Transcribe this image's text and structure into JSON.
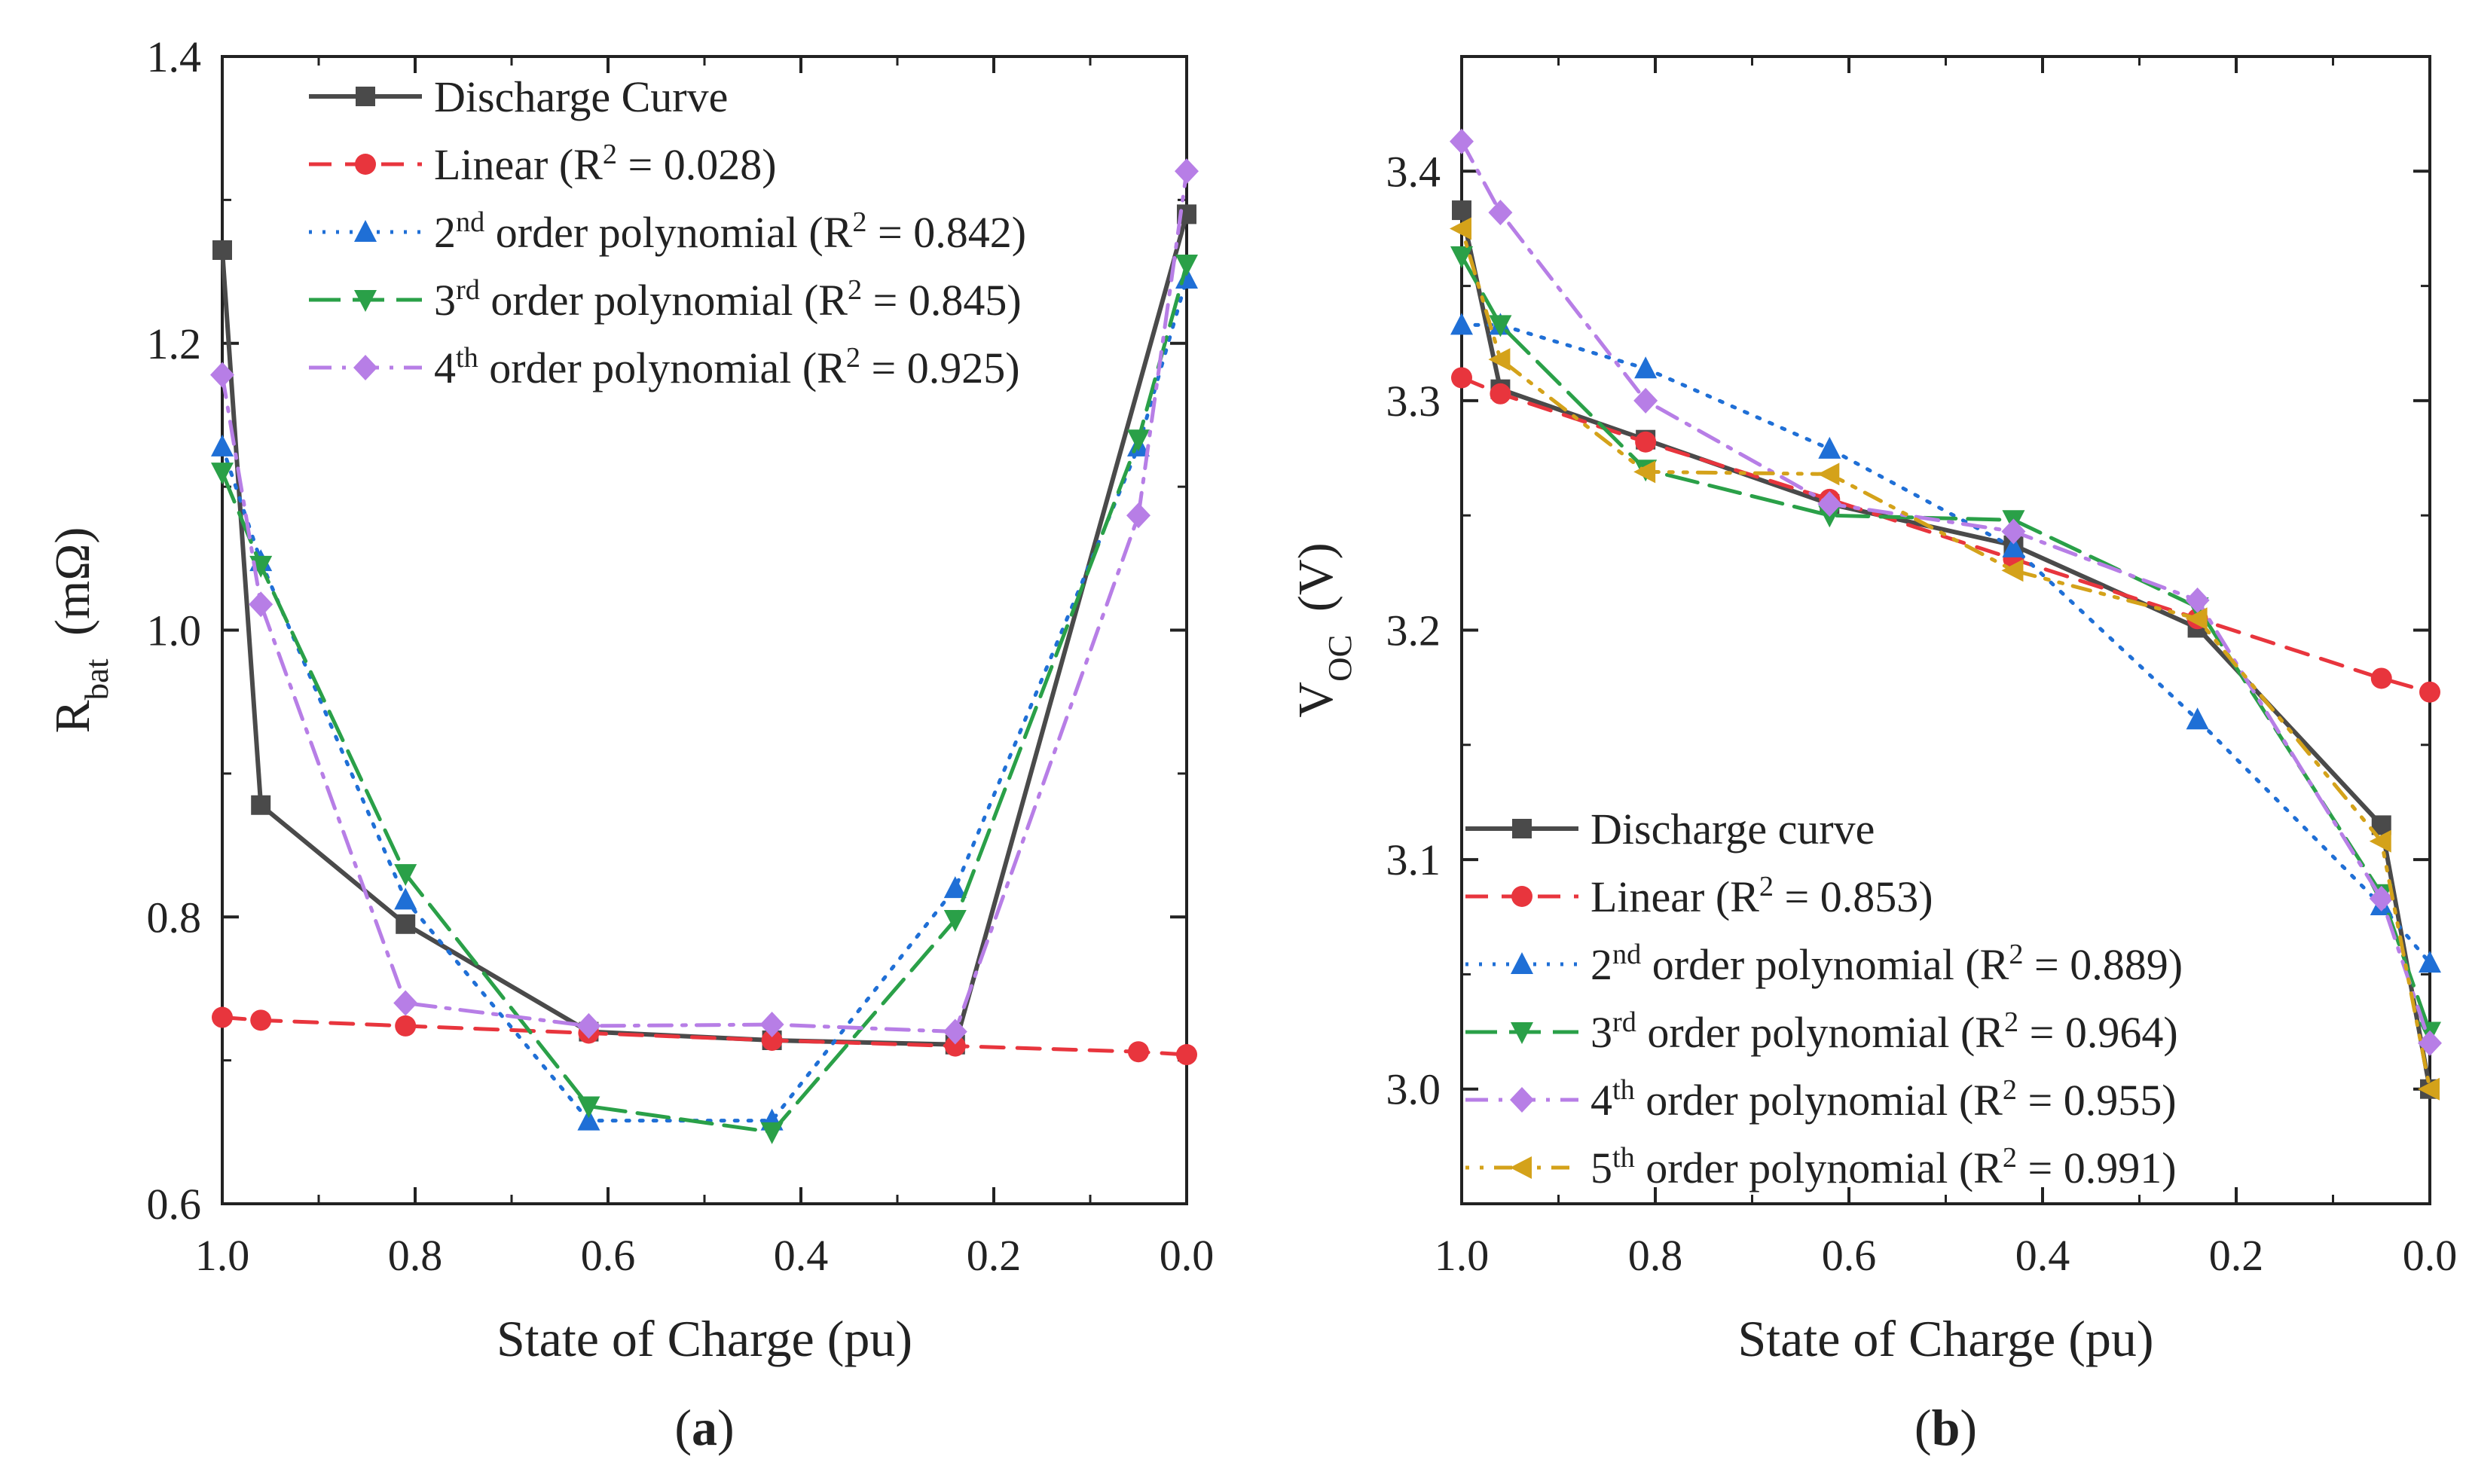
{
  "chart_data": [
    {
      "panel_label": "a",
      "type": "line",
      "xlabel": "State of Charge (pu)",
      "ylabel_main": "R",
      "ylabel_sub": "bat",
      "ylabel_unit": "(mΩ)",
      "xlim": [
        1.0,
        0.0
      ],
      "ylim": [
        0.6,
        1.4
      ],
      "x_reversed": true,
      "xticks": [
        1.0,
        0.8,
        0.6,
        0.4,
        0.2,
        0.0
      ],
      "xtick_labels": [
        "1.0",
        "0.8",
        "0.6",
        "0.4",
        "0.2",
        "0.0"
      ],
      "yticks": [
        0.6,
        0.8,
        1.0,
        1.2,
        1.4
      ],
      "ytick_labels": [
        "0.6",
        "0.8",
        "1.0",
        "1.2",
        "1.4"
      ],
      "grid": false,
      "legend_position": "top-left",
      "series": [
        {
          "name": "Discharge Curve",
          "legend": {
            "pre": "Discharge Curve",
            "sup": "",
            "post": ""
          },
          "color": "#4a4a4a",
          "marker": "square",
          "dash": "solid",
          "x": [
            1.0,
            0.96,
            0.81,
            0.62,
            0.43,
            0.24,
            0.0
          ],
          "y": [
            1.265,
            0.878,
            0.795,
            0.72,
            0.714,
            0.711,
            1.29
          ]
        },
        {
          "name": "Linear (R2 = 0.028)",
          "legend": {
            "pre": "Linear (R",
            "sup": "2",
            "post": " = 0.028)"
          },
          "color": "#e8353d",
          "marker": "circle",
          "dash": "dash",
          "x": [
            1.0,
            0.96,
            0.81,
            0.62,
            0.43,
            0.24,
            0.05,
            0.0
          ],
          "y": [
            0.73,
            0.728,
            0.724,
            0.719,
            0.714,
            0.71,
            0.706,
            0.704
          ]
        },
        {
          "name": "2nd order polynomial (R2 = 0.842)",
          "legend": {
            "pre": "2",
            "sup": "nd",
            "post": " order polynomial (R2 = 0.842)"
          },
          "color": "#1f6fd6",
          "marker": "triangle-up",
          "dash": "dot",
          "x": [
            1.0,
            0.96,
            0.81,
            0.62,
            0.43,
            0.24,
            0.05,
            0.0
          ],
          "y": [
            1.128,
            1.048,
            0.812,
            0.658,
            0.658,
            0.82,
            1.128,
            1.245
          ]
        },
        {
          "name": "3rd order polynomial (R2 = 0.845)",
          "legend": {
            "pre": "3",
            "sup": "rd",
            "post": " order polynomial (R2 = 0.845)"
          },
          "color": "#2aa048",
          "marker": "triangle-down",
          "dash": "longdash",
          "x": [
            1.0,
            0.96,
            0.81,
            0.62,
            0.43,
            0.24,
            0.05,
            0.0
          ],
          "y": [
            1.11,
            1.045,
            0.83,
            0.668,
            0.65,
            0.798,
            1.133,
            1.255
          ]
        },
        {
          "name": "4th order polynomial (R2 = 0.925)",
          "legend": {
            "pre": "4",
            "sup": "th",
            "post": " order polynomial (R2 = 0.925)"
          },
          "color": "#b77ee6",
          "marker": "diamond",
          "dash": "dashdot",
          "x": [
            1.0,
            0.96,
            0.81,
            0.62,
            0.43,
            0.24,
            0.05,
            0.0
          ],
          "y": [
            1.178,
            1.018,
            0.74,
            0.724,
            0.725,
            0.72,
            1.08,
            1.32
          ]
        }
      ]
    },
    {
      "panel_label": "b",
      "type": "line",
      "xlabel": "State of Charge (pu)",
      "ylabel_main": "V",
      "ylabel_sub": "OC",
      "ylabel_unit": "(V)",
      "xlim": [
        1.0,
        0.0
      ],
      "ylim": [
        2.95,
        3.45
      ],
      "x_reversed": true,
      "xticks": [
        1.0,
        0.8,
        0.6,
        0.4,
        0.2,
        0.0
      ],
      "xtick_labels": [
        "1.0",
        "0.8",
        "0.6",
        "0.4",
        "0.2",
        "0.0"
      ],
      "yticks": [
        3.0,
        3.1,
        3.2,
        3.3,
        3.4
      ],
      "ytick_labels": [
        "3.0",
        "3.1",
        "3.2",
        "3.3",
        "3.4"
      ],
      "grid": false,
      "legend_position": "bottom-left",
      "series": [
        {
          "name": "Discharge curve",
          "legend": {
            "pre": "Discharge curve",
            "sup": "",
            "post": ""
          },
          "color": "#4a4a4a",
          "marker": "square",
          "dash": "solid",
          "x": [
            1.0,
            0.96,
            0.81,
            0.62,
            0.43,
            0.24,
            0.05,
            0.0
          ],
          "y": [
            3.383,
            3.305,
            3.283,
            3.255,
            3.237,
            3.201,
            3.115,
            3.0
          ]
        },
        {
          "name": "Linear (R2 = 0.853)",
          "legend": {
            "pre": "Linear (R",
            "sup": "2",
            "post": " = 0.853)"
          },
          "color": "#e8353d",
          "marker": "circle",
          "dash": "dash",
          "x": [
            1.0,
            0.96,
            0.81,
            0.62,
            0.43,
            0.24,
            0.05,
            0.0
          ],
          "y": [
            3.31,
            3.303,
            3.282,
            3.257,
            3.231,
            3.205,
            3.179,
            3.173
          ]
        },
        {
          "name": "2nd order polynomial (R2 = 0.889)",
          "legend": {
            "pre": "2",
            "sup": "nd",
            "post": " order polynomial (R2 = 0.889)"
          },
          "color": "#1f6fd6",
          "marker": "triangle-up",
          "dash": "dot",
          "x": [
            1.0,
            0.96,
            0.81,
            0.62,
            0.43,
            0.24,
            0.05,
            0.0
          ],
          "y": [
            3.333,
            3.333,
            3.314,
            3.279,
            3.236,
            3.161,
            3.08,
            3.055
          ]
        },
        {
          "name": "3rd order polynomial (R2 = 0.964)",
          "legend": {
            "pre": "3",
            "sup": "rd",
            "post": " order polynomial (R2 = 0.964)"
          },
          "color": "#2aa048",
          "marker": "triangle-down",
          "dash": "longdash",
          "x": [
            1.0,
            0.96,
            0.81,
            0.62,
            0.43,
            0.24,
            0.05,
            0.0
          ],
          "y": [
            3.363,
            3.333,
            3.27,
            3.25,
            3.248,
            3.21,
            3.085,
            3.025
          ]
        },
        {
          "name": "4th order polynomial (R2 = 0.955)",
          "legend": {
            "pre": "4",
            "sup": "th",
            "post": " order polynomial (R2 = 0.955)"
          },
          "color": "#b77ee6",
          "marker": "diamond",
          "dash": "dashdot",
          "x": [
            1.0,
            0.96,
            0.81,
            0.62,
            0.43,
            0.24,
            0.05,
            0.0
          ],
          "y": [
            3.413,
            3.382,
            3.3,
            3.255,
            3.243,
            3.213,
            3.083,
            3.02
          ]
        },
        {
          "name": "5th order polynomial (R2 = 0.991)",
          "legend": {
            "pre": "5",
            "sup": "th",
            "post": " order polynomial (R2 = 0.991)"
          },
          "color": "#d4a21a",
          "marker": "triangle-left",
          "dash": "dotdash",
          "x": [
            1.0,
            0.96,
            0.81,
            0.62,
            0.43,
            0.24,
            0.05,
            0.0
          ],
          "y": [
            3.375,
            3.318,
            3.269,
            3.268,
            3.226,
            3.205,
            3.108,
            3.0
          ]
        }
      ]
    }
  ]
}
